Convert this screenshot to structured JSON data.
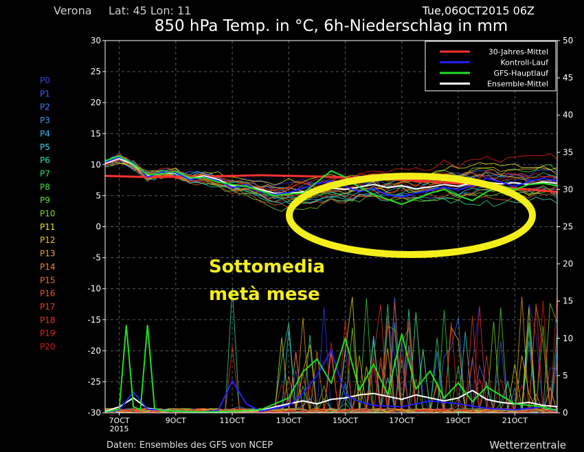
{
  "header": {
    "location": "Verona",
    "coords": "Lat: 45 Lon: 11",
    "run": "Tue,06OCT2015 06Z",
    "title": "850 hPa Temp. in °C, 6h-Niederschlag in mm"
  },
  "footer": {
    "source": "Daten: Ensembles des GFS von NCEP",
    "brand": "Wetterzentrale"
  },
  "annotation": {
    "line1": "Sottomedia",
    "line2": "metà mese",
    "ellipse_color": "#f4ef1a"
  },
  "members": [
    {
      "name": "P0",
      "color": "#3c3cff"
    },
    {
      "name": "P1",
      "color": "#3c5cff"
    },
    {
      "name": "P2",
      "color": "#3c7cff"
    },
    {
      "name": "P3",
      "color": "#3c9cff"
    },
    {
      "name": "P4",
      "color": "#3cbcff"
    },
    {
      "name": "P5",
      "color": "#3cdcf0"
    },
    {
      "name": "P6",
      "color": "#30e8a0"
    },
    {
      "name": "P7",
      "color": "#30e070"
    },
    {
      "name": "P8",
      "color": "#40e040"
    },
    {
      "name": "P9",
      "color": "#60e030"
    },
    {
      "name": "P10",
      "color": "#80e020"
    },
    {
      "name": "P11",
      "color": "#e8e820"
    },
    {
      "name": "P12",
      "color": "#f0c820"
    },
    {
      "name": "P13",
      "color": "#f0a820"
    },
    {
      "name": "P14",
      "color": "#f08820"
    },
    {
      "name": "P15",
      "color": "#f07020"
    },
    {
      "name": "P16",
      "color": "#f05820"
    },
    {
      "name": "P17",
      "color": "#f04020"
    },
    {
      "name": "P18",
      "color": "#f03020"
    },
    {
      "name": "P19",
      "color": "#f02020"
    },
    {
      "name": "P20",
      "color": "#e01818"
    }
  ],
  "chart_data": {
    "type": "line",
    "x_range": [
      6.5,
      22.5
    ],
    "x_ticks": [
      {
        "value": 7,
        "label": "7OCT",
        "sub": "2015"
      },
      {
        "value": 9,
        "label": "9OCT",
        "sub": ""
      },
      {
        "value": 11,
        "label": "11OCT",
        "sub": ""
      },
      {
        "value": 13,
        "label": "13OCT",
        "sub": ""
      },
      {
        "value": 15,
        "label": "15OCT",
        "sub": ""
      },
      {
        "value": 17,
        "label": "17OCT",
        "sub": ""
      },
      {
        "value": 19,
        "label": "19OCT",
        "sub": ""
      },
      {
        "value": 21,
        "label": "21OCT",
        "sub": ""
      }
    ],
    "y_left": {
      "range": [
        -30,
        30
      ],
      "ticks": [
        30,
        25,
        20,
        15,
        10,
        5,
        0,
        -5,
        -10,
        -15,
        -20,
        -25,
        -30
      ]
    },
    "y_right": {
      "range": [
        0,
        50
      ],
      "ticks": [
        50,
        45,
        40,
        35,
        30,
        25,
        20,
        15,
        10,
        5,
        0
      ]
    },
    "grid": true,
    "legend": [
      {
        "label": "30-Jahres-Mittel",
        "color": "#ff3030"
      },
      {
        "label": "Kontroll-Lauf",
        "color": "#2020ff"
      },
      {
        "label": "GFS-Hauptlauf",
        "color": "#20e020"
      },
      {
        "label": "Ensemble-Mittel",
        "color": "#ffffff"
      }
    ],
    "series": [
      {
        "name": "30-Jahres-Mittel",
        "axis": "left",
        "x": [
          6.5,
          8,
          10,
          12,
          14,
          16,
          18,
          20,
          22.5
        ],
        "y": [
          8.2,
          8.0,
          8.1,
          8.3,
          8.1,
          7.8,
          7.3,
          6.6,
          5.6
        ]
      },
      {
        "name": "Ensemble-Mittel",
        "axis": "left",
        "x": [
          6.5,
          7,
          7.5,
          8,
          8.5,
          9,
          9.5,
          10,
          10.5,
          11,
          11.5,
          12,
          12.5,
          13,
          13.5,
          14,
          14.5,
          15,
          15.5,
          16,
          16.5,
          17,
          17.5,
          18,
          18.5,
          19,
          19.5,
          20,
          20.5,
          21,
          21.5,
          22,
          22.5
        ],
        "y": [
          10.2,
          11.0,
          10.0,
          8.2,
          8.6,
          8.6,
          7.8,
          8.2,
          7.6,
          6.6,
          6.6,
          6.0,
          5.4,
          5.4,
          5.6,
          5.8,
          6.2,
          6.0,
          6.4,
          6.8,
          6.3,
          6.6,
          6.1,
          6.4,
          6.8,
          6.5,
          7.1,
          7.2,
          6.9,
          7.1,
          6.8,
          7.2,
          7.0
        ]
      },
      {
        "name": "Kontroll-Lauf",
        "axis": "left",
        "x": [
          6.5,
          7,
          7.5,
          8,
          8.5,
          9,
          9.5,
          10,
          10.5,
          11,
          11.5,
          12,
          12.5,
          13,
          13.5,
          14,
          14.5,
          15,
          15.5,
          16,
          16.5,
          17,
          17.5,
          18,
          18.5,
          19,
          19.5,
          20,
          20.5,
          21,
          21.5,
          22,
          22.5
        ],
        "y": [
          10.4,
          11.2,
          10.3,
          8.0,
          8.8,
          8.7,
          7.6,
          8.0,
          7.4,
          6.3,
          6.8,
          5.6,
          5.2,
          5.5,
          6.2,
          6.9,
          7.4,
          6.5,
          5.6,
          6.2,
          5.1,
          4.8,
          5.4,
          5.8,
          6.4,
          5.9,
          6.6,
          7.8,
          7.2,
          6.5,
          7.3,
          7.8,
          7.4
        ]
      },
      {
        "name": "GFS-Hauptlauf",
        "axis": "left",
        "x": [
          6.5,
          7,
          7.5,
          8,
          8.5,
          9,
          9.5,
          10,
          10.5,
          11,
          11.5,
          12,
          12.5,
          13,
          13.5,
          14,
          14.5,
          15,
          15.5,
          16,
          16.5,
          17,
          17.5,
          18,
          18.5,
          19,
          19.5,
          20,
          20.5,
          21,
          21.5,
          22,
          22.5
        ],
        "y": [
          10.6,
          11.4,
          10.1,
          8.4,
          8.5,
          8.9,
          7.9,
          7.9,
          7.2,
          6.8,
          6.5,
          5.8,
          5.0,
          5.3,
          5.4,
          7.2,
          9.0,
          8.0,
          6.4,
          5.2,
          4.4,
          3.6,
          4.5,
          5.4,
          6.0,
          5.0,
          4.2,
          5.6,
          6.6,
          6.0,
          6.8,
          7.0,
          6.6
        ]
      },
      {
        "name": "Ensemble-Mittel",
        "axis": "right",
        "x": [
          6.5,
          7,
          7.5,
          8,
          8.5,
          9,
          10,
          11,
          12,
          12.5,
          13,
          13.5,
          14,
          14.5,
          15,
          15.5,
          16,
          16.5,
          17,
          17.5,
          18,
          18.5,
          19,
          19.5,
          20,
          20.5,
          21,
          21.5,
          22,
          22.5
        ],
        "y": [
          0.2,
          0.8,
          2.0,
          0.6,
          0.4,
          0.2,
          0.1,
          0.2,
          0.3,
          0.8,
          1.2,
          1.6,
          1.2,
          1.8,
          2.0,
          2.4,
          2.6,
          2.2,
          1.8,
          2.4,
          2.0,
          1.6,
          2.0,
          3.0,
          1.8,
          1.4,
          1.2,
          1.4,
          1.0,
          0.8
        ]
      },
      {
        "name": "Kontroll-Lauf",
        "axis": "right",
        "x": [
          6.5,
          7,
          7.5,
          8,
          9,
          10,
          10.5,
          11,
          11.5,
          12,
          13,
          13.5,
          14,
          14.5,
          15,
          15.5,
          16,
          17,
          18,
          19,
          20,
          21,
          22,
          22.5
        ],
        "y": [
          0.1,
          0.4,
          2.8,
          0.5,
          0.2,
          0.1,
          0.3,
          4.3,
          1.2,
          0.2,
          1.0,
          2.6,
          5.0,
          8.4,
          2.4,
          1.5,
          1.0,
          0.8,
          1.6,
          1.2,
          0.6,
          0.4,
          0.8,
          0.2
        ]
      },
      {
        "name": "GFS-Hauptlauf",
        "axis": "right",
        "x": [
          6.5,
          7,
          7.25,
          7.5,
          7.75,
          8,
          8.25,
          8.5,
          9,
          10,
          11,
          12,
          13,
          13.5,
          14,
          14.5,
          15,
          15.5,
          16,
          16.5,
          17,
          17.5,
          18,
          18.5,
          19,
          19.5,
          20,
          21,
          22,
          22.5
        ],
        "y": [
          0.1,
          0.5,
          11.8,
          0.8,
          0.4,
          11.8,
          0.6,
          0.3,
          0.2,
          0.1,
          0.2,
          0.4,
          2.0,
          5.5,
          7.2,
          4.0,
          10.0,
          3.0,
          6.5,
          2.5,
          10.6,
          3.2,
          5.6,
          2.0,
          4.0,
          1.5,
          3.5,
          1.2,
          0.8,
          0.3
        ]
      }
    ]
  }
}
